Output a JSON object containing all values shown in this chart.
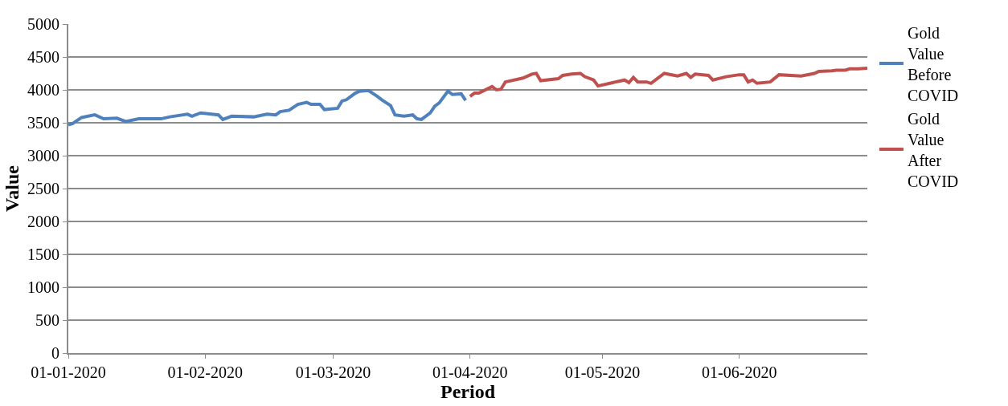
{
  "chart_data": {
    "type": "line",
    "xlabel": "Period",
    "ylabel": "Value",
    "xlim": [
      "2020-01-01",
      "2020-06-30"
    ],
    "xticks": [
      {
        "value": "2020-01-01",
        "label": "01-01-2020"
      },
      {
        "value": "2020-02-01",
        "label": "01-02-2020"
      },
      {
        "value": "2020-03-01",
        "label": "01-03-2020"
      },
      {
        "value": "2020-04-01",
        "label": "01-04-2020"
      },
      {
        "value": "2020-05-01",
        "label": "01-05-2020"
      },
      {
        "value": "2020-06-01",
        "label": "01-06-2020"
      }
    ],
    "ylim": [
      0,
      5000
    ],
    "yticks": [
      0,
      500,
      1000,
      1500,
      2000,
      2500,
      3000,
      3500,
      4000,
      4500,
      5000
    ],
    "grid": "y",
    "legend": "right",
    "marker": "none",
    "line_style": "solid",
    "series": [
      {
        "name": "Gold Value Before COVID",
        "color": "#4f81bd",
        "x": [
          "2020-01-01",
          "2020-01-02",
          "2020-01-04",
          "2020-01-07",
          "2020-01-09",
          "2020-01-12",
          "2020-01-14",
          "2020-01-17",
          "2020-01-22",
          "2020-01-24",
          "2020-01-28",
          "2020-01-29",
          "2020-01-31",
          "2020-02-04",
          "2020-02-05",
          "2020-02-07",
          "2020-02-12",
          "2020-02-15",
          "2020-02-17",
          "2020-02-18",
          "2020-02-20",
          "2020-02-22",
          "2020-02-24",
          "2020-02-25",
          "2020-02-27",
          "2020-02-28",
          "2020-03-02",
          "2020-03-03",
          "2020-03-04",
          "2020-03-06",
          "2020-03-07",
          "2020-03-09",
          "2020-03-11",
          "2020-03-12",
          "2020-03-14",
          "2020-03-15",
          "2020-03-17",
          "2020-03-19",
          "2020-03-20",
          "2020-03-21",
          "2020-03-23",
          "2020-03-24",
          "2020-03-25",
          "2020-03-27",
          "2020-03-28",
          "2020-03-30",
          "2020-03-31"
        ],
        "values": [
          3470,
          3490,
          3580,
          3620,
          3560,
          3570,
          3520,
          3560,
          3560,
          3590,
          3630,
          3600,
          3650,
          3620,
          3550,
          3600,
          3590,
          3630,
          3620,
          3670,
          3690,
          3780,
          3810,
          3780,
          3780,
          3700,
          3720,
          3830,
          3850,
          3950,
          3980,
          3990,
          3900,
          3850,
          3760,
          3620,
          3600,
          3620,
          3560,
          3550,
          3650,
          3750,
          3800,
          3980,
          3930,
          3940,
          3840
        ]
      },
      {
        "name": "Gold Value After COVID",
        "color": "#c0504d",
        "x": [
          "2020-04-01",
          "2020-04-02",
          "2020-04-03",
          "2020-04-06",
          "2020-04-07",
          "2020-04-08",
          "2020-04-09",
          "2020-04-13",
          "2020-04-15",
          "2020-04-16",
          "2020-04-17",
          "2020-04-21",
          "2020-04-22",
          "2020-04-24",
          "2020-04-26",
          "2020-04-27",
          "2020-04-29",
          "2020-04-30",
          "2020-05-06",
          "2020-05-07",
          "2020-05-08",
          "2020-05-09",
          "2020-05-11",
          "2020-05-12",
          "2020-05-15",
          "2020-05-18",
          "2020-05-20",
          "2020-05-21",
          "2020-05-22",
          "2020-05-25",
          "2020-05-26",
          "2020-05-29",
          "2020-06-01",
          "2020-06-02",
          "2020-06-03",
          "2020-06-04",
          "2020-06-05",
          "2020-06-08",
          "2020-06-10",
          "2020-06-15",
          "2020-06-18",
          "2020-06-19",
          "2020-06-22",
          "2020-06-23",
          "2020-06-25",
          "2020-06-26",
          "2020-06-28",
          "2020-06-30"
        ],
        "values": [
          3900,
          3950,
          3950,
          4050,
          4000,
          4010,
          4120,
          4180,
          4240,
          4250,
          4140,
          4170,
          4220,
          4240,
          4250,
          4200,
          4150,
          4060,
          4150,
          4110,
          4190,
          4120,
          4120,
          4100,
          4250,
          4210,
          4250,
          4190,
          4240,
          4220,
          4150,
          4200,
          4230,
          4230,
          4120,
          4150,
          4100,
          4120,
          4230,
          4210,
          4250,
          4280,
          4290,
          4300,
          4300,
          4320,
          4320,
          4330
        ]
      }
    ]
  }
}
